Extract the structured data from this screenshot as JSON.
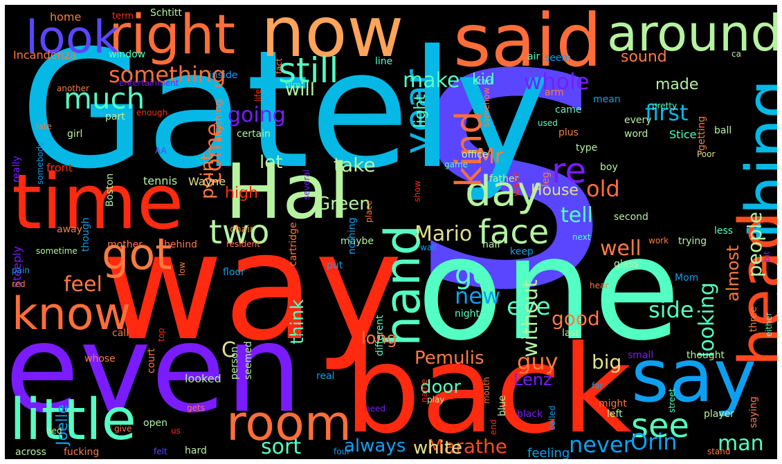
{
  "words": [
    {
      "text": "s",
      "color": "#5a46ff"
    },
    {
      "text": "Gately",
      "color": "#05b8e6"
    },
    {
      "text": "one",
      "color": "#54ffc4"
    },
    {
      "text": "way",
      "color": "#ff2a10"
    },
    {
      "text": "even",
      "color": "#7a1cff"
    },
    {
      "text": "back",
      "color": "#ff2a10"
    },
    {
      "text": "now",
      "color": "#ffa45a"
    },
    {
      "text": "said",
      "color": "#ff6e3a"
    },
    {
      "text": "Hal",
      "color": "#b6f2a0"
    },
    {
      "text": "time",
      "color": "#ff2a10"
    },
    {
      "text": "around",
      "color": "#b6f2a0"
    },
    {
      "text": "right",
      "color": "#ff6e3a"
    },
    {
      "text": "look",
      "color": "#5a46ff"
    },
    {
      "text": "thing",
      "color": "#05b8e6"
    },
    {
      "text": "head",
      "color": "#ff4a20"
    },
    {
      "text": "say",
      "color": "#0ea0f0"
    },
    {
      "text": "little",
      "color": "#54ffc4"
    },
    {
      "text": "room",
      "color": "#ff6e3a"
    },
    {
      "text": "know",
      "color": "#ff6e3a"
    },
    {
      "text": "got",
      "color": "#ff7a40"
    },
    {
      "text": "day",
      "color": "#b6f2a0"
    },
    {
      "text": "two",
      "color": "#b6f2a0"
    },
    {
      "text": "hand",
      "color": "#54ffc4"
    },
    {
      "text": "face",
      "color": "#b6f2a0"
    },
    {
      "text": "year",
      "color": "#05b8e6"
    },
    {
      "text": "kind",
      "color": "#ff6e3a"
    },
    {
      "text": "re",
      "color": "#7a1cff"
    },
    {
      "text": "still",
      "color": "#54ffc4"
    },
    {
      "text": "much",
      "color": "#54ffc4"
    },
    {
      "text": "see",
      "color": "#54ffc4"
    },
    {
      "text": "Mario",
      "color": "#e0e08a"
    },
    {
      "text": "Orin",
      "color": "#0ea0f0"
    },
    {
      "text": "something",
      "color": "#ff6e3a"
    },
    {
      "text": "make",
      "color": "#54ffc4"
    },
    {
      "text": "whole",
      "color": "#7a1cff"
    },
    {
      "text": "first",
      "color": "#05b8e6"
    },
    {
      "text": "old",
      "color": "#ff6e3a"
    },
    {
      "text": "eye",
      "color": "#54ffc4"
    },
    {
      "text": "side",
      "color": "#54ffc4"
    },
    {
      "text": "Pemulis",
      "color": "#ff7a40"
    },
    {
      "text": "sort",
      "color": "#54ffc4"
    },
    {
      "text": "man",
      "color": "#54ffc4"
    },
    {
      "text": "never",
      "color": "#0ea0f0"
    },
    {
      "text": "go",
      "color": "#54ffc4"
    },
    {
      "text": "new",
      "color": "#0ea0f0"
    },
    {
      "text": "guy",
      "color": "#ff7a40"
    },
    {
      "text": "feel",
      "color": "#ff7a40"
    },
    {
      "text": "come",
      "color": "#ff6e3a"
    },
    {
      "text": "point",
      "color": "#ff7a40"
    },
    {
      "text": "going",
      "color": "#7a1cff"
    },
    {
      "text": "take",
      "color": "#b6f2a0"
    },
    {
      "text": "Green",
      "color": "#b6f2a0"
    },
    {
      "text": "House",
      "color": "#e0e08a"
    },
    {
      "text": "tell",
      "color": "#54ffc4"
    },
    {
      "text": "well",
      "color": "#ff7a40"
    },
    {
      "text": "Marathe",
      "color": "#ff4a20"
    },
    {
      "text": "white",
      "color": "#e0e08a"
    },
    {
      "text": "always",
      "color": "#0ea0f0"
    },
    {
      "text": "Lenz",
      "color": "#7a1cff"
    },
    {
      "text": "big",
      "color": "#e0e08a"
    },
    {
      "text": "good",
      "color": "#ff7a40"
    },
    {
      "text": "looking",
      "color": "#54ffc4"
    },
    {
      "text": "without",
      "color": "#b6f2a0"
    },
    {
      "text": "people",
      "color": "#b6f2a0"
    },
    {
      "text": "almost",
      "color": "#ff7a40"
    },
    {
      "text": "Mr",
      "color": "#ff7a40"
    },
    {
      "text": "let",
      "color": "#b6f2a0"
    },
    {
      "text": "will",
      "color": "#b6f2a0"
    },
    {
      "text": "made",
      "color": "#b6f2a0"
    },
    {
      "text": "sound",
      "color": "#ff7a40"
    },
    {
      "text": "kid",
      "color": "#54ffc4"
    },
    {
      "text": "light",
      "color": "#54ffc4"
    },
    {
      "text": "high",
      "color": "#ff2a10"
    },
    {
      "text": "door",
      "color": "#54ffc4"
    },
    {
      "text": "long",
      "color": "#ff7a40"
    },
    {
      "text": "think",
      "color": "#54ffc4"
    },
    {
      "text": "C",
      "color": "#e0e08a"
    },
    {
      "text": "feeling",
      "color": "#0ea0f0"
    },
    {
      "text": "Joelle",
      "color": "#0ea0f0"
    },
    {
      "text": "home",
      "color": "#ff7a40"
    },
    {
      "text": "term",
      "color": "#ff2a10"
    },
    {
      "text": "Schtitt",
      "color": "#b6f2a0"
    },
    {
      "text": "air",
      "color": "#54ffc4"
    },
    {
      "text": "seem",
      "color": "#0ea0f0"
    },
    {
      "text": "Incandenza",
      "color": "#ff7a40"
    },
    {
      "text": "window",
      "color": "#54ffc4"
    },
    {
      "text": "inside",
      "color": "#0ea0f0"
    },
    {
      "text": "fact",
      "color": "#ff7a40"
    },
    {
      "text": "line",
      "color": "#54ffc4"
    },
    {
      "text": "ca",
      "color": "#b6f2a0"
    },
    {
      "text": "another",
      "color": "#ff7a40"
    },
    {
      "text": "entertainment",
      "color": "#7a1cff"
    },
    {
      "text": "life",
      "color": "#ff2a10"
    },
    {
      "text": "film",
      "color": "#54ffc4"
    },
    {
      "text": "start",
      "color": "#54ffc4"
    },
    {
      "text": "somehow",
      "color": "#ff7a40"
    },
    {
      "text": "arm",
      "color": "#ff7a40"
    },
    {
      "text": "came",
      "color": "#54ffc4"
    },
    {
      "text": "mean",
      "color": "#0ea0f0"
    },
    {
      "text": "pretty",
      "color": "#54ffc4"
    },
    {
      "text": "getting",
      "color": "#ff7a40"
    },
    {
      "text": "every",
      "color": "#b6f2a0"
    },
    {
      "text": "word",
      "color": "#b6f2a0"
    },
    {
      "text": "used",
      "color": "#54ffc4"
    },
    {
      "text": "Stice",
      "color": "#54ffc4"
    },
    {
      "text": "ball",
      "color": "#b6f2a0"
    },
    {
      "text": "plus",
      "color": "#ff7a40"
    },
    {
      "text": "type",
      "color": "#b6f2a0"
    },
    {
      "text": "boy",
      "color": "#b6f2a0"
    },
    {
      "text": "office",
      "color": "#b6f2a0"
    },
    {
      "text": "Poor",
      "color": "#e0e08a"
    },
    {
      "text": "enough",
      "color": "#ff2a10"
    },
    {
      "text": "part",
      "color": "#b6f2a0"
    },
    {
      "text": "late",
      "color": "#ff7a40"
    },
    {
      "text": "girl",
      "color": "#b6f2a0"
    },
    {
      "text": "certain",
      "color": "#b6f2a0"
    },
    {
      "text": "somebody",
      "color": "#0ea0f0"
    },
    {
      "text": "really",
      "color": "#7a1cff"
    },
    {
      "text": "Boston",
      "color": "#b6f2a0"
    },
    {
      "text": "anything",
      "color": "#ff7a40"
    },
    {
      "text": "AA",
      "color": "#5a46ff"
    },
    {
      "text": "game",
      "color": "#54ffc4"
    },
    {
      "text": "front",
      "color": "#ff2a10"
    },
    {
      "text": "tennis",
      "color": "#b6f2a0"
    },
    {
      "text": "Wayne",
      "color": "#e0e08a"
    },
    {
      "text": "father",
      "color": "#b6f2a0"
    },
    {
      "text": "want",
      "color": "#ff2a10"
    },
    {
      "text": "leg",
      "color": "#ff7a40"
    },
    {
      "text": "show",
      "color": "#ff2a10"
    },
    {
      "text": "several",
      "color": "#7a1cff"
    },
    {
      "text": "second",
      "color": "#b6f2a0"
    },
    {
      "text": "less",
      "color": "#54ffc4"
    },
    {
      "text": "though",
      "color": "#0ea0f0"
    },
    {
      "text": "away",
      "color": "#ff7a40"
    },
    {
      "text": "chair",
      "color": "#ff7a40"
    },
    {
      "text": "cartridge",
      "color": "#ff7a40"
    },
    {
      "text": "maybe",
      "color": "#b6f2a0"
    },
    {
      "text": "nothing",
      "color": "#0ea0f0"
    },
    {
      "text": "place",
      "color": "#ff7a40"
    },
    {
      "text": "half",
      "color": "#b6f2a0"
    },
    {
      "text": "trying",
      "color": "#b6f2a0"
    },
    {
      "text": "bit",
      "color": "#7a1cff"
    },
    {
      "text": "mother",
      "color": "#ff7a40"
    },
    {
      "text": "behind",
      "color": "#ff7a40"
    },
    {
      "text": "resident",
      "color": "#ff7a40"
    },
    {
      "text": "next",
      "color": "#54ffc4"
    },
    {
      "text": "work",
      "color": "#ff7a40"
    },
    {
      "text": "Steeply",
      "color": "#7a1cff"
    },
    {
      "text": "sometime",
      "color": "#b6f2a0"
    },
    {
      "text": "pain",
      "color": "#0ea0f0"
    },
    {
      "text": "red",
      "color": "#ff7a40"
    },
    {
      "text": "low",
      "color": "#ff7a40"
    },
    {
      "text": "wall",
      "color": "#0ea0f0"
    },
    {
      "text": "keep",
      "color": "#0ea0f0"
    },
    {
      "text": "floor",
      "color": "#0ea0f0"
    },
    {
      "text": "put",
      "color": "#0ea0f0"
    },
    {
      "text": "glass",
      "color": "#b6f2a0"
    },
    {
      "text": "Mom",
      "color": "#0ea0f0"
    },
    {
      "text": "hear",
      "color": "#ff7a40"
    },
    {
      "text": "three",
      "color": "#ff7a40"
    },
    {
      "text": "either",
      "color": "#54ffc4"
    },
    {
      "text": "call",
      "color": "#ff7a40"
    },
    {
      "text": "top",
      "color": "#ff2a10"
    },
    {
      "text": "different",
      "color": "#54ffc4"
    },
    {
      "text": "night",
      "color": "#54ffc4"
    },
    {
      "text": "last",
      "color": "#b6f2a0"
    },
    {
      "text": "hit",
      "color": "#ff2a10"
    },
    {
      "text": "name",
      "color": "#ff2a10"
    },
    {
      "text": "small",
      "color": "#7a1cff"
    },
    {
      "text": "thought",
      "color": "#b6f2a0"
    },
    {
      "text": "whose",
      "color": "#ff7a40"
    },
    {
      "text": "court",
      "color": "#ff7a40"
    },
    {
      "text": "seemed",
      "color": "#b6f2a0"
    },
    {
      "text": "person",
      "color": "#b6f2a0"
    },
    {
      "text": "real",
      "color": "#0ea0f0"
    },
    {
      "text": "mouth",
      "color": "#ff7a40"
    },
    {
      "text": "blue",
      "color": "#b6f2a0"
    },
    {
      "text": "black",
      "color": "#7a1cff"
    },
    {
      "text": "left",
      "color": "#b6f2a0"
    },
    {
      "text": "player",
      "color": "#b6f2a0"
    },
    {
      "text": "saying",
      "color": "#ff7a40"
    },
    {
      "text": "street",
      "color": "#54ffc4"
    },
    {
      "text": "far",
      "color": "#0ea0f0"
    },
    {
      "text": "might",
      "color": "#ff7a40"
    },
    {
      "text": "called",
      "color": "#0ea0f0"
    },
    {
      "text": "looked",
      "color": "#b6f2a0"
    },
    {
      "text": "open",
      "color": "#b6f2a0"
    },
    {
      "text": "gets",
      "color": "#ff7a40"
    },
    {
      "text": "give",
      "color": "#ff7a40"
    },
    {
      "text": "bed",
      "color": "#b6f2a0"
    },
    {
      "text": "us",
      "color": "#ff2a10"
    },
    {
      "text": "hard",
      "color": "#b6f2a0"
    },
    {
      "text": "need",
      "color": "#7a1cff"
    },
    {
      "text": "play",
      "color": "#b6f2a0"
    },
    {
      "text": "end",
      "color": "#ff2a10"
    },
    {
      "text": "across",
      "color": "#b6f2a0"
    },
    {
      "text": "fucking",
      "color": "#ff7a40"
    },
    {
      "text": "felt",
      "color": "#5a46ff"
    },
    {
      "text": "four",
      "color": "#0ea0f0"
    },
    {
      "text": "stand",
      "color": "#ff7a40"
    }
  ]
}
